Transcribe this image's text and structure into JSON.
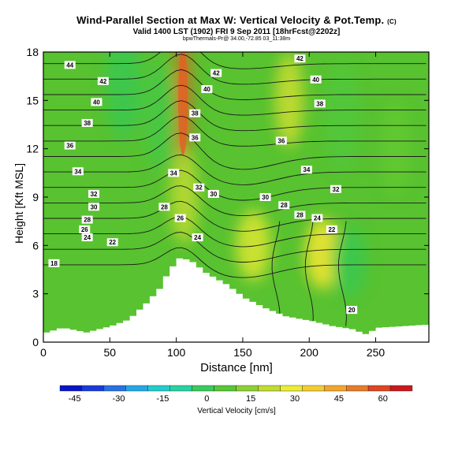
{
  "chart_data": {
    "type": "heatmap",
    "title": "Wind-Parallel Section at Max W: Vertical Velocity & Pot.Temp.",
    "title_mark": "(C)",
    "subtitle": "Valid 1400 LST (1902) FRI 9 Sep 2011 [18hrFcst@2202z]",
    "credit": "bpwThermals-Pr@ 34.00,-72.85 03_11:38m",
    "xlabel": "Distance [nm]",
    "ylabel": "Height [Kft MSL]",
    "xlim": [
      0,
      290
    ],
    "ylim": [
      0,
      18
    ],
    "xticks": [
      "0",
      "50",
      "100",
      "150",
      "200",
      "250"
    ],
    "yticks": [
      "0",
      "3",
      "6",
      "9",
      "12",
      "15",
      "18"
    ],
    "colorbar": {
      "label": "Vertical Velocity [cm/s]",
      "ticks": [
        "-45",
        "-30",
        "-15",
        "0",
        "15",
        "30",
        "45",
        "60"
      ],
      "range": [
        -50,
        70
      ]
    },
    "terrain": [
      [
        0,
        0.6
      ],
      [
        12,
        0.9
      ],
      [
        30,
        0.6
      ],
      [
        49,
        1.0
      ],
      [
        62,
        1.4
      ],
      [
        75,
        2.4
      ],
      [
        85,
        3.3
      ],
      [
        92,
        4.4
      ],
      [
        100,
        5.2
      ],
      [
        108,
        5.1
      ],
      [
        120,
        4.3
      ],
      [
        135,
        3.6
      ],
      [
        150,
        2.7
      ],
      [
        165,
        2.1
      ],
      [
        180,
        1.6
      ],
      [
        200,
        1.3
      ],
      [
        215,
        1.0
      ],
      [
        230,
        0.8
      ],
      [
        240,
        0.5
      ],
      [
        250,
        0.9
      ],
      [
        270,
        1.0
      ],
      [
        290,
        1.1
      ]
    ],
    "velocity_features": [
      {
        "x": 105,
        "y": 15,
        "value": 55
      },
      {
        "x": 106,
        "y": 9,
        "value": 20
      },
      {
        "x": 210,
        "y": 5.5,
        "value": 32
      },
      {
        "x": 158,
        "y": 6,
        "value": 25
      },
      {
        "x": 185,
        "y": 15,
        "value": 22
      },
      {
        "x": 60,
        "y": 16,
        "value": 0
      },
      {
        "x": 88,
        "y": 14,
        "value": 3
      },
      {
        "x": 225,
        "y": 14,
        "value": 5
      },
      {
        "x": 265,
        "y": 12,
        "value": 8
      },
      {
        "x": 230,
        "y": 5,
        "value": 0
      }
    ],
    "contour_labels": [
      {
        "text": "44",
        "x": 20,
        "y": 17.2
      },
      {
        "text": "42",
        "x": 45,
        "y": 16.2
      },
      {
        "text": "40",
        "x": 40,
        "y": 14.9
      },
      {
        "text": "38",
        "x": 33,
        "y": 13.6
      },
      {
        "text": "36",
        "x": 20,
        "y": 12.2
      },
      {
        "text": "34",
        "x": 26,
        "y": 10.6
      },
      {
        "text": "32",
        "x": 38,
        "y": 9.2
      },
      {
        "text": "30",
        "x": 38,
        "y": 8.4
      },
      {
        "text": "28",
        "x": 33,
        "y": 7.6
      },
      {
        "text": "26",
        "x": 31,
        "y": 7.0
      },
      {
        "text": "24",
        "x": 33,
        "y": 6.5
      },
      {
        "text": "22",
        "x": 52,
        "y": 6.2
      },
      {
        "text": "18",
        "x": 8,
        "y": 4.9
      },
      {
        "text": "42",
        "x": 193,
        "y": 17.6
      },
      {
        "text": "42",
        "x": 130,
        "y": 16.7
      },
      {
        "text": "40",
        "x": 123,
        "y": 15.7
      },
      {
        "text": "40",
        "x": 205,
        "y": 16.3
      },
      {
        "text": "38",
        "x": 114,
        "y": 14.2
      },
      {
        "text": "38",
        "x": 208,
        "y": 14.8
      },
      {
        "text": "36",
        "x": 114,
        "y": 12.7
      },
      {
        "text": "36",
        "x": 179,
        "y": 12.5
      },
      {
        "text": "34",
        "x": 98,
        "y": 10.5
      },
      {
        "text": "34",
        "x": 198,
        "y": 10.7
      },
      {
        "text": "32",
        "x": 117,
        "y": 9.6
      },
      {
        "text": "32",
        "x": 220,
        "y": 9.5
      },
      {
        "text": "30",
        "x": 128,
        "y": 9.2
      },
      {
        "text": "30",
        "x": 167,
        "y": 9.0
      },
      {
        "text": "28",
        "x": 91,
        "y": 8.4
      },
      {
        "text": "28",
        "x": 181,
        "y": 8.5
      },
      {
        "text": "28",
        "x": 193,
        "y": 7.9
      },
      {
        "text": "26",
        "x": 103,
        "y": 7.7
      },
      {
        "text": "24",
        "x": 116,
        "y": 6.5
      },
      {
        "text": "24",
        "x": 206,
        "y": 7.7
      },
      {
        "text": "22",
        "x": 217,
        "y": 7.0
      },
      {
        "text": "20",
        "x": 232,
        "y": 2.0
      }
    ]
  }
}
